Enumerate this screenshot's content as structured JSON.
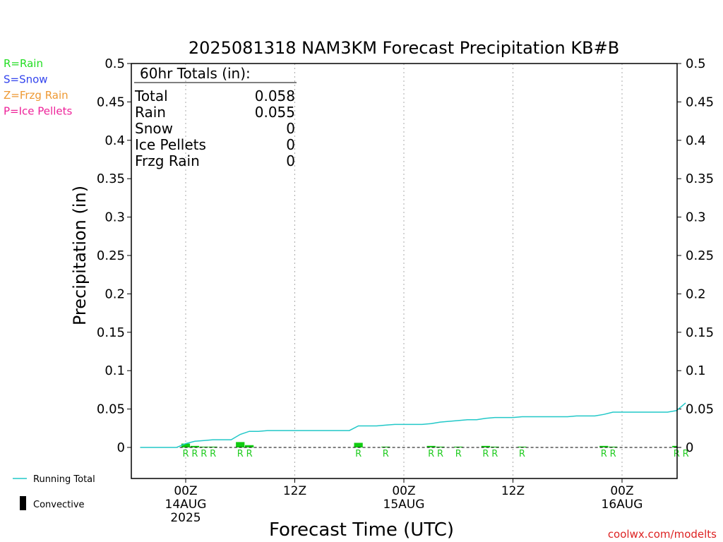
{
  "chart_data": {
    "type": "bar",
    "title": "2025081318 NAM3KM Forecast Precipitation KB#B",
    "xlabel": "Forecast Time (UTC)",
    "ylabel": "Precipitation (in)",
    "credit": "coolwx.com/modelts",
    "ylim": [
      0,
      0.5
    ],
    "xlim": [
      -6,
      55
    ],
    "yticks": [
      0,
      0.05,
      0.1,
      0.15,
      0.2,
      0.25,
      0.3,
      0.35,
      0.4,
      0.45,
      0.5
    ],
    "xticks": [
      {
        "x": 0,
        "lines": [
          "00Z",
          "14AUG",
          "2025"
        ]
      },
      {
        "x": 12,
        "lines": [
          "12Z"
        ]
      },
      {
        "x": 24,
        "lines": [
          "00Z",
          "15AUG"
        ]
      },
      {
        "x": 36,
        "lines": [
          "12Z"
        ]
      },
      {
        "x": 48,
        "lines": [
          "00Z",
          "16AUG"
        ]
      }
    ],
    "grid_x": [
      0,
      12,
      24,
      36,
      48
    ],
    "type_legend": [
      {
        "label": "R=Rain",
        "color": "#22dd22"
      },
      {
        "label": "S=Snow",
        "color": "#3344ee"
      },
      {
        "label": "Z=Frzg Rain",
        "color": "#ee9933"
      },
      {
        "label": "P=Ice Pellets",
        "color": "#ee2299"
      }
    ],
    "series_legend": [
      {
        "label": "Running Total",
        "color": "#22c8c8"
      },
      {
        "label": "Convective",
        "color": "#000000"
      }
    ],
    "totals": {
      "header": "60hr Totals (in):",
      "rows": [
        {
          "label": "Total",
          "value": "0.058"
        },
        {
          "label": "Rain",
          "value": "0.055"
        },
        {
          "label": "Snow",
          "value": "0"
        },
        {
          "label": "Ice Pellets",
          "value": "0"
        },
        {
          "label": "Frzg Rain",
          "value": "0"
        }
      ]
    },
    "bars": [
      {
        "x": 0,
        "value": 0.005
      },
      {
        "x": 1,
        "value": 0.002
      },
      {
        "x": 2,
        "value": 0.001
      },
      {
        "x": 3,
        "value": 0.001
      },
      {
        "x": 6,
        "value": 0.007
      },
      {
        "x": 7,
        "value": 0.003
      },
      {
        "x": 19,
        "value": 0.006
      },
      {
        "x": 22,
        "value": 0.001
      },
      {
        "x": 27,
        "value": 0.002
      },
      {
        "x": 28,
        "value": 0.001
      },
      {
        "x": 30,
        "value": 0.001
      },
      {
        "x": 33,
        "value": 0.002
      },
      {
        "x": 34,
        "value": 0.001
      },
      {
        "x": 37,
        "value": 0.001
      },
      {
        "x": 46,
        "value": 0.002
      },
      {
        "x": 47,
        "value": 0.001
      },
      {
        "x": 54,
        "value": 0.002
      },
      {
        "x": 55,
        "value": 0.01
      }
    ],
    "type_markers": [
      {
        "x": 0,
        "label": "R"
      },
      {
        "x": 1,
        "label": "R"
      },
      {
        "x": 2,
        "label": "R"
      },
      {
        "x": 3,
        "label": "R"
      },
      {
        "x": 6,
        "label": "R"
      },
      {
        "x": 7,
        "label": "R"
      },
      {
        "x": 19,
        "label": "R"
      },
      {
        "x": 22,
        "label": "R"
      },
      {
        "x": 27,
        "label": "R"
      },
      {
        "x": 28,
        "label": "R"
      },
      {
        "x": 30,
        "label": "R"
      },
      {
        "x": 33,
        "label": "R"
      },
      {
        "x": 34,
        "label": "R"
      },
      {
        "x": 37,
        "label": "R"
      },
      {
        "x": 46,
        "label": "R"
      },
      {
        "x": 47,
        "label": "R"
      },
      {
        "x": 54,
        "label": "R"
      },
      {
        "x": 55,
        "label": "R"
      }
    ],
    "running_total": {
      "x": [
        -5,
        -4,
        -3,
        -2,
        -1,
        0,
        1,
        2,
        3,
        4,
        5,
        6,
        7,
        8,
        9,
        10,
        11,
        12,
        13,
        14,
        15,
        16,
        17,
        18,
        19,
        20,
        21,
        22,
        23,
        24,
        25,
        26,
        27,
        28,
        29,
        30,
        31,
        32,
        33,
        34,
        35,
        36,
        37,
        38,
        39,
        40,
        41,
        42,
        43,
        44,
        45,
        46,
        47,
        48,
        49,
        50,
        51,
        52,
        53,
        54,
        55
      ],
      "y": [
        0,
        0,
        0,
        0,
        0,
        0.005,
        0.008,
        0.009,
        0.01,
        0.01,
        0.01,
        0.017,
        0.021,
        0.021,
        0.022,
        0.022,
        0.022,
        0.022,
        0.022,
        0.022,
        0.022,
        0.022,
        0.022,
        0.022,
        0.028,
        0.028,
        0.028,
        0.029,
        0.03,
        0.03,
        0.03,
        0.03,
        0.031,
        0.033,
        0.034,
        0.035,
        0.036,
        0.036,
        0.038,
        0.039,
        0.039,
        0.039,
        0.04,
        0.04,
        0.04,
        0.04,
        0.04,
        0.04,
        0.041,
        0.041,
        0.041,
        0.043,
        0.046,
        0.046,
        0.046,
        0.046,
        0.046,
        0.046,
        0.046,
        0.048,
        0.058
      ]
    }
  }
}
